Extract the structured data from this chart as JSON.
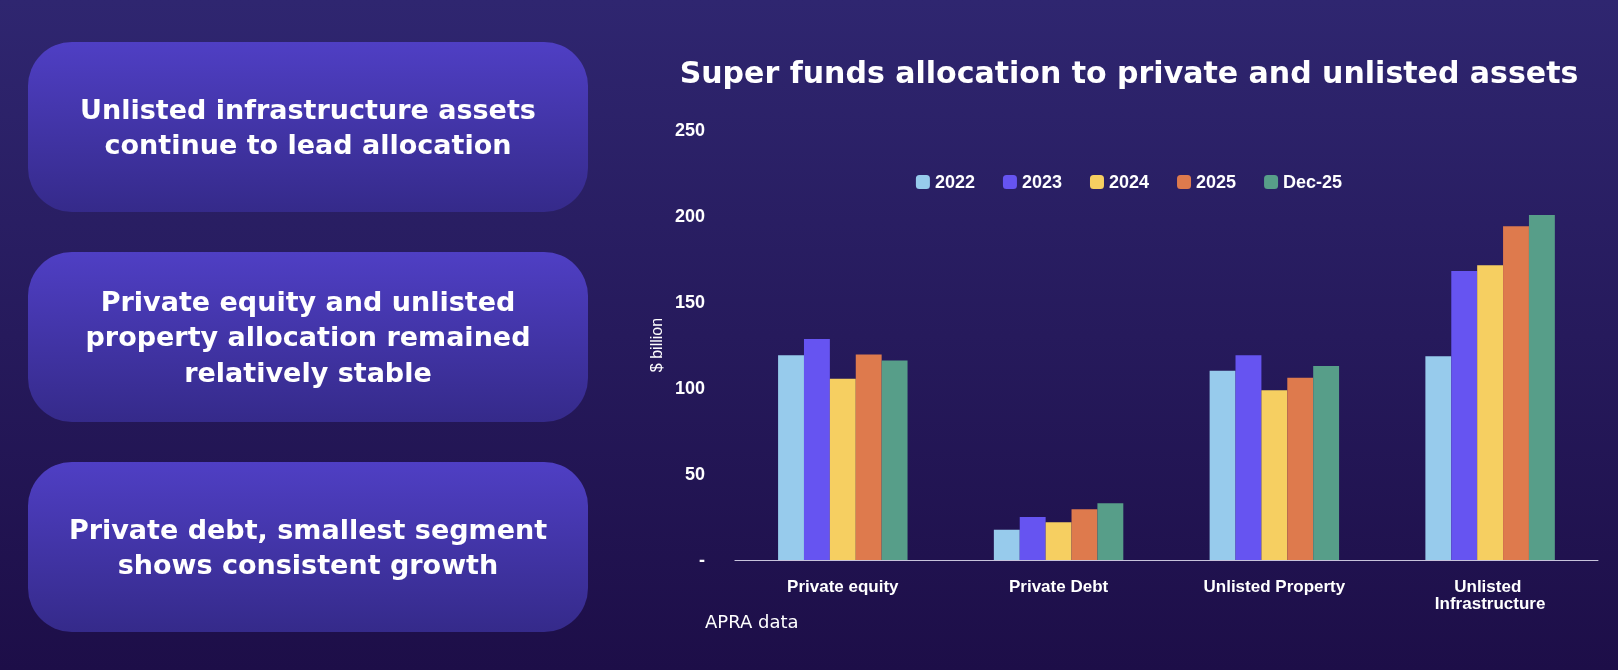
{
  "chart_data": [
    {
      "type": "other",
      "annotations": [
        "Unlisted infrastructure assets continue to lead allocation",
        "Private equity and unlisted property allocation remained relatively stable",
        "Private debt, smallest segment shows consistent growth"
      ]
    },
    {
      "type": "bar",
      "title": "Super funds allocation to private and unlisted assets",
      "ylabel": "$ billion",
      "categories": [
        "Private equity",
        "Private Debt",
        "Unlisted Property",
        "Unlisted Infrastructure"
      ],
      "series": [
        {
          "name": "2022",
          "color": "#97cbec",
          "values": [
            119,
            17.6,
            110,
            118.4
          ]
        },
        {
          "name": "2023",
          "color": "#6654f1",
          "values": [
            128.5,
            25,
            119,
            168
          ]
        },
        {
          "name": "2024",
          "color": "#f6cf61",
          "values": [
            105.4,
            22,
            98.7,
            171.3
          ]
        },
        {
          "name": "2025",
          "color": "#de7a4d",
          "values": [
            119.5,
            29.5,
            106,
            194
          ]
        },
        {
          "name": "Dec-25",
          "color": "#579e89",
          "values": [
            116,
            33,
            112.8,
            200.6
          ]
        }
      ],
      "ylim": [
        0,
        250
      ],
      "yticks": [
        {
          "value": 0,
          "label": "-"
        },
        50,
        100,
        150,
        200,
        250
      ],
      "grid": false,
      "legend": "top",
      "annotations": [
        "APRA data"
      ]
    }
  ]
}
